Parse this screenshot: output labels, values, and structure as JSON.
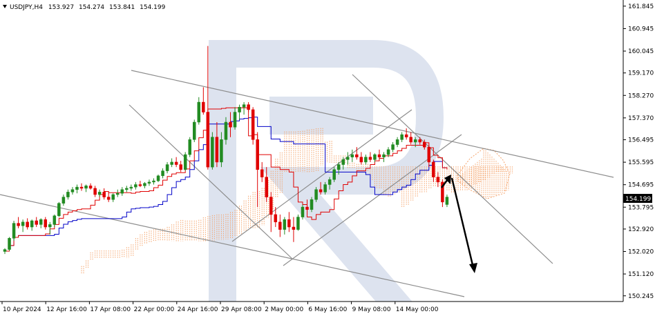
{
  "header": {
    "symbol": "USDJPY,H4",
    "open": "153.927",
    "high": "154.274",
    "low": "153.841",
    "close": "154.199"
  },
  "colors": {
    "bull": "#228b22",
    "bear": "#e00000",
    "tenkan": "#e00000",
    "kijun": "#0000c8",
    "cloud": "#f5a36a",
    "trendline": "#8c8c8c",
    "arrow": "#000000",
    "watermark": "#dde3ef"
  },
  "chart_data": {
    "type": "candlestick",
    "symbol": "USDJPY",
    "timeframe": "H4",
    "ylim": [
      150.1,
      161.98
    ],
    "yticks": [
      "161.845",
      "160.945",
      "160.045",
      "159.170",
      "158.270",
      "157.370",
      "156.495",
      "155.595",
      "154.695",
      "153.795",
      "152.920",
      "152.020",
      "151.120",
      "150.245"
    ],
    "xticks": [
      "10 Apr 2024",
      "12 Apr 16:00",
      "17 Apr 08:00",
      "22 Apr 00:00",
      "24 Apr 16:00",
      "29 Apr 08:00",
      "2 May 00:00",
      "6 May 16:00",
      "9 May 08:00",
      "14 May 00:00"
    ],
    "current_price": "154.199",
    "candles": [
      [
        152.02,
        152.15,
        151.92,
        152.1
      ],
      [
        152.1,
        152.6,
        152.05,
        152.55
      ],
      [
        152.55,
        153.25,
        152.45,
        153.15
      ],
      [
        153.15,
        153.4,
        152.95,
        153.05
      ],
      [
        153.05,
        153.3,
        152.8,
        153.2
      ],
      [
        153.2,
        153.35,
        152.9,
        153.0
      ],
      [
        153.0,
        153.3,
        152.85,
        153.25
      ],
      [
        153.25,
        153.4,
        153.0,
        153.1
      ],
      [
        153.1,
        153.35,
        152.95,
        153.3
      ],
      [
        153.3,
        153.4,
        152.9,
        153.0
      ],
      [
        153.0,
        153.2,
        152.7,
        153.1
      ],
      [
        153.1,
        153.5,
        153.0,
        153.45
      ],
      [
        153.45,
        154.0,
        153.4,
        153.95
      ],
      [
        153.95,
        154.3,
        153.85,
        154.2
      ],
      [
        154.2,
        154.5,
        154.1,
        154.4
      ],
      [
        154.4,
        154.6,
        154.3,
        154.5
      ],
      [
        154.5,
        154.7,
        154.35,
        154.6
      ],
      [
        154.6,
        154.75,
        154.45,
        154.55
      ],
      [
        154.55,
        154.7,
        154.4,
        154.65
      ],
      [
        154.65,
        154.75,
        154.5,
        154.55
      ],
      [
        154.55,
        154.65,
        154.2,
        154.3
      ],
      [
        154.3,
        154.5,
        154.2,
        154.4
      ],
      [
        154.4,
        154.55,
        154.1,
        154.2
      ],
      [
        154.2,
        154.4,
        154.0,
        154.1
      ],
      [
        154.1,
        154.35,
        154.0,
        154.3
      ],
      [
        154.3,
        154.5,
        154.2,
        154.35
      ],
      [
        154.35,
        154.6,
        154.25,
        154.5
      ],
      [
        154.5,
        154.65,
        154.4,
        154.55
      ],
      [
        154.55,
        154.7,
        154.45,
        154.6
      ],
      [
        154.6,
        154.8,
        154.5,
        154.7
      ],
      [
        154.7,
        154.85,
        154.6,
        154.65
      ],
      [
        154.65,
        154.8,
        154.55,
        154.75
      ],
      [
        154.75,
        154.9,
        154.65,
        154.8
      ],
      [
        154.8,
        154.95,
        154.7,
        154.85
      ],
      [
        154.85,
        155.1,
        154.8,
        155.05
      ],
      [
        155.05,
        155.35,
        154.95,
        155.25
      ],
      [
        155.25,
        155.6,
        155.15,
        155.5
      ],
      [
        155.5,
        155.75,
        155.4,
        155.6
      ],
      [
        155.6,
        155.8,
        155.4,
        155.5
      ],
      [
        155.5,
        155.65,
        155.2,
        155.3
      ],
      [
        155.3,
        156.0,
        155.25,
        155.9
      ],
      [
        155.9,
        156.6,
        155.8,
        156.5
      ],
      [
        156.5,
        157.3,
        156.4,
        157.2
      ],
      [
        157.2,
        158.2,
        157.1,
        158.0
      ],
      [
        158.0,
        158.6,
        157.5,
        157.6
      ],
      [
        157.6,
        160.25,
        155.3,
        155.4
      ],
      [
        155.4,
        156.8,
        155.3,
        156.6
      ],
      [
        156.6,
        157.2,
        155.4,
        155.6
      ],
      [
        155.6,
        156.8,
        155.4,
        156.5
      ],
      [
        156.5,
        157.4,
        156.3,
        157.2
      ],
      [
        157.2,
        157.6,
        156.6,
        157.0
      ],
      [
        157.0,
        157.8,
        156.9,
        157.6
      ],
      [
        157.6,
        157.9,
        157.3,
        157.8
      ],
      [
        157.8,
        158.0,
        157.5,
        157.9
      ],
      [
        157.9,
        158.0,
        157.6,
        157.7
      ],
      [
        157.7,
        157.8,
        156.3,
        156.5
      ],
      [
        156.5,
        156.8,
        153.8,
        155.3
      ],
      [
        155.3,
        155.6,
        154.8,
        155.0
      ],
      [
        155.0,
        155.4,
        154.0,
        154.2
      ],
      [
        154.2,
        154.4,
        152.8,
        153.5
      ],
      [
        153.5,
        153.8,
        153.0,
        153.2
      ],
      [
        153.2,
        153.5,
        152.6,
        152.9
      ],
      [
        152.9,
        153.4,
        152.7,
        153.3
      ],
      [
        153.3,
        153.6,
        152.8,
        153.0
      ],
      [
        153.0,
        153.4,
        152.4,
        152.9
      ],
      [
        152.9,
        153.5,
        152.85,
        153.4
      ],
      [
        153.4,
        153.9,
        153.3,
        153.8
      ],
      [
        153.8,
        154.1,
        153.6,
        153.7
      ],
      [
        153.7,
        154.2,
        153.6,
        154.1
      ],
      [
        154.1,
        154.6,
        154.0,
        154.5
      ],
      [
        154.5,
        154.8,
        154.3,
        154.4
      ],
      [
        154.4,
        154.8,
        154.3,
        154.7
      ],
      [
        154.7,
        155.0,
        154.5,
        154.9
      ],
      [
        154.9,
        155.4,
        154.8,
        155.3
      ],
      [
        155.3,
        155.6,
        155.1,
        155.5
      ],
      [
        155.5,
        155.8,
        155.3,
        155.7
      ],
      [
        155.7,
        156.0,
        155.5,
        155.8
      ],
      [
        155.8,
        156.1,
        155.6,
        155.9
      ],
      [
        155.9,
        156.2,
        155.7,
        155.8
      ],
      [
        155.8,
        156.0,
        155.5,
        155.6
      ],
      [
        155.6,
        155.9,
        155.5,
        155.8
      ],
      [
        155.8,
        156.0,
        155.6,
        155.7
      ],
      [
        155.7,
        155.95,
        155.6,
        155.9
      ],
      [
        155.9,
        156.1,
        155.7,
        155.8
      ],
      [
        155.8,
        156.0,
        155.6,
        155.9
      ],
      [
        155.9,
        156.2,
        155.8,
        156.1
      ],
      [
        156.1,
        156.4,
        156.0,
        156.3
      ],
      [
        156.3,
        156.6,
        156.2,
        156.5
      ],
      [
        156.5,
        156.8,
        156.4,
        156.7
      ],
      [
        156.7,
        156.95,
        156.5,
        156.6
      ],
      [
        156.6,
        156.8,
        156.3,
        156.4
      ],
      [
        156.4,
        156.6,
        156.2,
        156.5
      ],
      [
        156.5,
        156.6,
        156.3,
        156.4
      ],
      [
        156.4,
        156.5,
        156.1,
        156.2
      ],
      [
        156.2,
        156.3,
        155.4,
        155.6
      ],
      [
        155.6,
        155.7,
        154.8,
        155.0
      ],
      [
        155.0,
        155.2,
        154.6,
        154.8
      ],
      [
        154.8,
        154.9,
        153.8,
        154.0
      ],
      [
        153.9,
        154.3,
        153.8,
        154.2
      ]
    ],
    "annotations": [
      "descending channel trendlines",
      "ascending channel trendlines",
      "forecast arrow up then down"
    ]
  }
}
